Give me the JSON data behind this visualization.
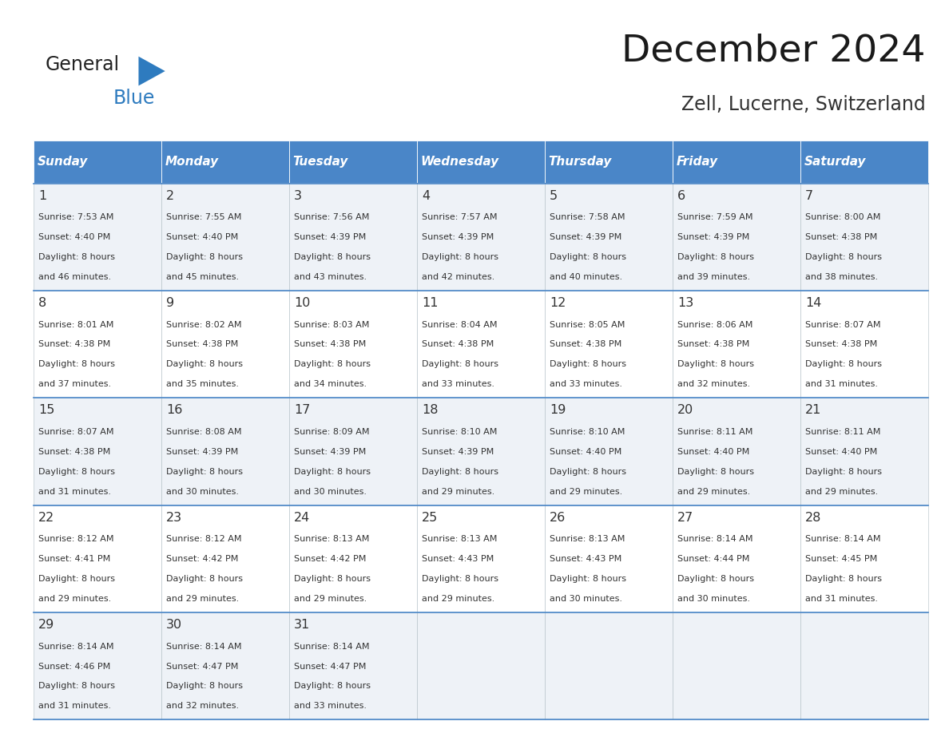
{
  "title": "December 2024",
  "subtitle": "Zell, Lucerne, Switzerland",
  "header_bg": "#4a86c8",
  "header_text": "#ffffff",
  "day_names": [
    "Sunday",
    "Monday",
    "Tuesday",
    "Wednesday",
    "Thursday",
    "Friday",
    "Saturday"
  ],
  "row_bg_light": "#eef2f7",
  "row_bg_white": "#ffffff",
  "cell_border": "#b0bec5",
  "logo_text_color": "#222222",
  "logo_blue_color": "#2e7bbf",
  "triangle_color": "#2e7bbf",
  "text_color": "#333333",
  "days": [
    {
      "day": 1,
      "col": 0,
      "row": 0,
      "sunrise": "7:53 AM",
      "sunset": "4:40 PM",
      "daylight": "8 hours and 46 minutes."
    },
    {
      "day": 2,
      "col": 1,
      "row": 0,
      "sunrise": "7:55 AM",
      "sunset": "4:40 PM",
      "daylight": "8 hours and 45 minutes."
    },
    {
      "day": 3,
      "col": 2,
      "row": 0,
      "sunrise": "7:56 AM",
      "sunset": "4:39 PM",
      "daylight": "8 hours and 43 minutes."
    },
    {
      "day": 4,
      "col": 3,
      "row": 0,
      "sunrise": "7:57 AM",
      "sunset": "4:39 PM",
      "daylight": "8 hours and 42 minutes."
    },
    {
      "day": 5,
      "col": 4,
      "row": 0,
      "sunrise": "7:58 AM",
      "sunset": "4:39 PM",
      "daylight": "8 hours and 40 minutes."
    },
    {
      "day": 6,
      "col": 5,
      "row": 0,
      "sunrise": "7:59 AM",
      "sunset": "4:39 PM",
      "daylight": "8 hours and 39 minutes."
    },
    {
      "day": 7,
      "col": 6,
      "row": 0,
      "sunrise": "8:00 AM",
      "sunset": "4:38 PM",
      "daylight": "8 hours and 38 minutes."
    },
    {
      "day": 8,
      "col": 0,
      "row": 1,
      "sunrise": "8:01 AM",
      "sunset": "4:38 PM",
      "daylight": "8 hours and 37 minutes."
    },
    {
      "day": 9,
      "col": 1,
      "row": 1,
      "sunrise": "8:02 AM",
      "sunset": "4:38 PM",
      "daylight": "8 hours and 35 minutes."
    },
    {
      "day": 10,
      "col": 2,
      "row": 1,
      "sunrise": "8:03 AM",
      "sunset": "4:38 PM",
      "daylight": "8 hours and 34 minutes."
    },
    {
      "day": 11,
      "col": 3,
      "row": 1,
      "sunrise": "8:04 AM",
      "sunset": "4:38 PM",
      "daylight": "8 hours and 33 minutes."
    },
    {
      "day": 12,
      "col": 4,
      "row": 1,
      "sunrise": "8:05 AM",
      "sunset": "4:38 PM",
      "daylight": "8 hours and 33 minutes."
    },
    {
      "day": 13,
      "col": 5,
      "row": 1,
      "sunrise": "8:06 AM",
      "sunset": "4:38 PM",
      "daylight": "8 hours and 32 minutes."
    },
    {
      "day": 14,
      "col": 6,
      "row": 1,
      "sunrise": "8:07 AM",
      "sunset": "4:38 PM",
      "daylight": "8 hours and 31 minutes."
    },
    {
      "day": 15,
      "col": 0,
      "row": 2,
      "sunrise": "8:07 AM",
      "sunset": "4:38 PM",
      "daylight": "8 hours and 31 minutes."
    },
    {
      "day": 16,
      "col": 1,
      "row": 2,
      "sunrise": "8:08 AM",
      "sunset": "4:39 PM",
      "daylight": "8 hours and 30 minutes."
    },
    {
      "day": 17,
      "col": 2,
      "row": 2,
      "sunrise": "8:09 AM",
      "sunset": "4:39 PM",
      "daylight": "8 hours and 30 minutes."
    },
    {
      "day": 18,
      "col": 3,
      "row": 2,
      "sunrise": "8:10 AM",
      "sunset": "4:39 PM",
      "daylight": "8 hours and 29 minutes."
    },
    {
      "day": 19,
      "col": 4,
      "row": 2,
      "sunrise": "8:10 AM",
      "sunset": "4:40 PM",
      "daylight": "8 hours and 29 minutes."
    },
    {
      "day": 20,
      "col": 5,
      "row": 2,
      "sunrise": "8:11 AM",
      "sunset": "4:40 PM",
      "daylight": "8 hours and 29 minutes."
    },
    {
      "day": 21,
      "col": 6,
      "row": 2,
      "sunrise": "8:11 AM",
      "sunset": "4:40 PM",
      "daylight": "8 hours and 29 minutes."
    },
    {
      "day": 22,
      "col": 0,
      "row": 3,
      "sunrise": "8:12 AM",
      "sunset": "4:41 PM",
      "daylight": "8 hours and 29 minutes."
    },
    {
      "day": 23,
      "col": 1,
      "row": 3,
      "sunrise": "8:12 AM",
      "sunset": "4:42 PM",
      "daylight": "8 hours and 29 minutes."
    },
    {
      "day": 24,
      "col": 2,
      "row": 3,
      "sunrise": "8:13 AM",
      "sunset": "4:42 PM",
      "daylight": "8 hours and 29 minutes."
    },
    {
      "day": 25,
      "col": 3,
      "row": 3,
      "sunrise": "8:13 AM",
      "sunset": "4:43 PM",
      "daylight": "8 hours and 29 minutes."
    },
    {
      "day": 26,
      "col": 4,
      "row": 3,
      "sunrise": "8:13 AM",
      "sunset": "4:43 PM",
      "daylight": "8 hours and 30 minutes."
    },
    {
      "day": 27,
      "col": 5,
      "row": 3,
      "sunrise": "8:14 AM",
      "sunset": "4:44 PM",
      "daylight": "8 hours and 30 minutes."
    },
    {
      "day": 28,
      "col": 6,
      "row": 3,
      "sunrise": "8:14 AM",
      "sunset": "4:45 PM",
      "daylight": "8 hours and 31 minutes."
    },
    {
      "day": 29,
      "col": 0,
      "row": 4,
      "sunrise": "8:14 AM",
      "sunset": "4:46 PM",
      "daylight": "8 hours and 31 minutes."
    },
    {
      "day": 30,
      "col": 1,
      "row": 4,
      "sunrise": "8:14 AM",
      "sunset": "4:47 PM",
      "daylight": "8 hours and 32 minutes."
    },
    {
      "day": 31,
      "col": 2,
      "row": 4,
      "sunrise": "8:14 AM",
      "sunset": "4:47 PM",
      "daylight": "8 hours and 33 minutes."
    }
  ],
  "num_rows": 5,
  "num_cols": 7
}
